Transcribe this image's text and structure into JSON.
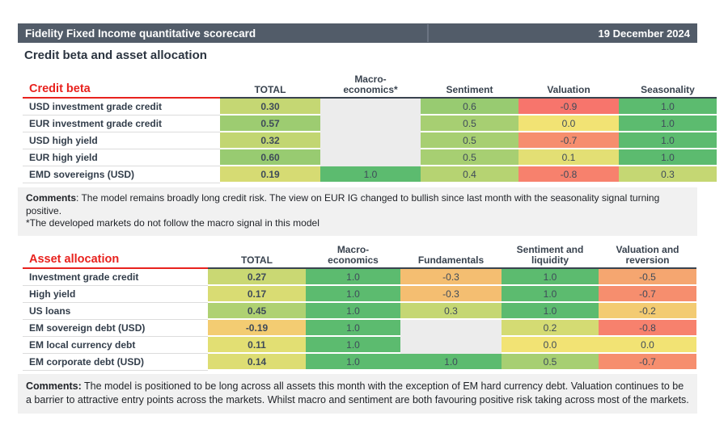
{
  "titlebar": {
    "title": "Fidelity Fixed Income quantitative scorecard",
    "date": "19 December 2024"
  },
  "page_title": "Credit beta and asset allocation",
  "colors": {
    "bar_bg": "#525c69",
    "accent_red": "#e8221e",
    "scale_positive": "#5cbb6f",
    "scale_zero": "#f2e374",
    "scale_negative": "#f8696b",
    "blank_cell": "#ececec",
    "comment_bg": "#f1f1f1"
  },
  "credit_beta_table": {
    "title": "Credit beta",
    "columns": [
      "TOTAL",
      "Macro-\neconomics*",
      "Sentiment",
      "Valuation",
      "Seasonality"
    ],
    "rows": [
      {
        "label": "USD investment grade credit",
        "cells": [
          "0.30",
          null,
          "0.6",
          "-0.9",
          "1.0"
        ]
      },
      {
        "label": "EUR investment grade credit",
        "cells": [
          "0.57",
          null,
          "0.5",
          "0.0",
          "1.0"
        ]
      },
      {
        "label": "USD high yield",
        "cells": [
          "0.32",
          null,
          "0.5",
          "-0.7",
          "1.0"
        ]
      },
      {
        "label": "EUR high yield",
        "cells": [
          "0.60",
          null,
          "0.5",
          "0.1",
          "1.0"
        ]
      },
      {
        "label": "EMD sovereigns (USD)",
        "cells": [
          "0.19",
          "1.0",
          "0.4",
          "-0.8",
          "0.3"
        ]
      }
    ],
    "comments_label": "Comments",
    "comments": ": The model remains broadly long credit risk. The view on EUR IG changed to bullish since last month with the seasonality signal turning positive.",
    "footnote": "*The developed markets do not follow the macro signal in this model"
  },
  "asset_allocation_table": {
    "title": "Asset allocation",
    "columns": [
      "TOTAL",
      "Macro-\neconomics",
      "Fundamentals",
      "Sentiment and\nliquidity",
      "Valuation and\nreversion"
    ],
    "rows": [
      {
        "label": "Investment grade credit",
        "cells": [
          "0.27",
          "1.0",
          "-0.3",
          "1.0",
          "-0.5"
        ]
      },
      {
        "label": "High yield",
        "cells": [
          "0.17",
          "1.0",
          "-0.3",
          "1.0",
          "-0.7"
        ]
      },
      {
        "label": "US loans",
        "cells": [
          "0.45",
          "1.0",
          "0.3",
          "1.0",
          "-0.2"
        ]
      },
      {
        "label": "EM sovereign debt (USD)",
        "cells": [
          "-0.19",
          "1.0",
          null,
          "0.2",
          "-0.8"
        ]
      },
      {
        "label": "EM local currency debt",
        "cells": [
          "0.11",
          "1.0",
          null,
          "0.0",
          "0.0"
        ]
      },
      {
        "label": "EM corporate debt (USD)",
        "cells": [
          "0.14",
          "1.0",
          "1.0",
          "0.5",
          "-0.7"
        ]
      }
    ],
    "comments_label": "Comments:",
    "comments": " The model is positioned to be long across all assets this month with the exception of EM hard currency debt. Valuation continues to be a barrier to attractive entry points across the markets. Whilst macro and sentiment are both favouring positive risk taking across most of the markets."
  }
}
